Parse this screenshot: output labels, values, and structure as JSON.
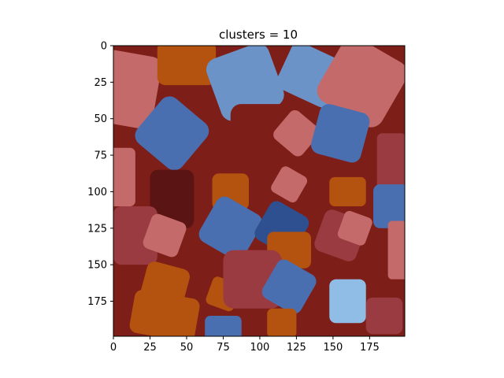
{
  "chart_data": {
    "type": "heatmap",
    "title": "clusters = 10",
    "xlabel": "",
    "ylabel": "",
    "xlim": [
      0,
      199
    ],
    "ylim": [
      199,
      0
    ],
    "x_ticks": [
      0,
      25,
      50,
      75,
      100,
      125,
      150,
      175
    ],
    "y_ticks": [
      0,
      25,
      50,
      75,
      100,
      125,
      150,
      175
    ],
    "grid": false,
    "palette": [
      "#2d0a0c",
      "#5a1414",
      "#7e1e18",
      "#9a3b42",
      "#c46a6a",
      "#b4520f",
      "#2e4f90",
      "#4a6fb0",
      "#6b93c8",
      "#8fbde6"
    ],
    "background_cluster": 2,
    "blobs": [
      {
        "shape": "rect",
        "cx": 10,
        "cy": 30,
        "w": 40,
        "h": 50,
        "rot": 10,
        "c": 4
      },
      {
        "shape": "rect",
        "cx": 50,
        "cy": 12,
        "w": 40,
        "h": 30,
        "rot": 0,
        "c": 5
      },
      {
        "shape": "rect",
        "cx": 90,
        "cy": 25,
        "w": 45,
        "h": 45,
        "rot": -20,
        "c": 8
      },
      {
        "shape": "rect",
        "cx": 135,
        "cy": 20,
        "w": 40,
        "h": 35,
        "rot": 25,
        "c": 8
      },
      {
        "shape": "rect",
        "cx": 170,
        "cy": 25,
        "w": 50,
        "h": 50,
        "rot": 30,
        "c": 4
      },
      {
        "shape": "rect",
        "cx": 40,
        "cy": 60,
        "w": 40,
        "h": 40,
        "rot": 40,
        "c": 7
      },
      {
        "shape": "rect",
        "cx": 100,
        "cy": 60,
        "w": 40,
        "h": 40,
        "rot": 0,
        "c": 2
      },
      {
        "shape": "rect",
        "cx": 125,
        "cy": 60,
        "w": 25,
        "h": 25,
        "rot": 40,
        "c": 4
      },
      {
        "shape": "rect",
        "cx": 155,
        "cy": 60,
        "w": 35,
        "h": 35,
        "rot": 15,
        "c": 7
      },
      {
        "shape": "rect",
        "cx": 190,
        "cy": 80,
        "w": 20,
        "h": 40,
        "rot": 0,
        "c": 3
      },
      {
        "shape": "rect",
        "cx": 5,
        "cy": 90,
        "w": 20,
        "h": 40,
        "rot": 0,
        "c": 4
      },
      {
        "shape": "rect",
        "cx": 40,
        "cy": 105,
        "w": 30,
        "h": 40,
        "rot": 0,
        "c": 1
      },
      {
        "shape": "rect",
        "cx": 80,
        "cy": 100,
        "w": 25,
        "h": 25,
        "rot": 0,
        "c": 5
      },
      {
        "shape": "rect",
        "cx": 120,
        "cy": 95,
        "w": 20,
        "h": 20,
        "rot": 30,
        "c": 4
      },
      {
        "shape": "rect",
        "cx": 160,
        "cy": 100,
        "w": 25,
        "h": 20,
        "rot": 0,
        "c": 5
      },
      {
        "shape": "rect",
        "cx": 190,
        "cy": 110,
        "w": 25,
        "h": 30,
        "rot": 0,
        "c": 7
      },
      {
        "shape": "rect",
        "cx": 15,
        "cy": 130,
        "w": 30,
        "h": 40,
        "rot": 0,
        "c": 3
      },
      {
        "shape": "rect",
        "cx": 35,
        "cy": 130,
        "w": 25,
        "h": 25,
        "rot": 20,
        "c": 4
      },
      {
        "shape": "rect",
        "cx": 80,
        "cy": 125,
        "w": 35,
        "h": 35,
        "rot": 30,
        "c": 7
      },
      {
        "shape": "rect",
        "cx": 115,
        "cy": 125,
        "w": 30,
        "h": 30,
        "rot": 30,
        "c": 6
      },
      {
        "shape": "rect",
        "cx": 120,
        "cy": 140,
        "w": 30,
        "h": 25,
        "rot": 0,
        "c": 5
      },
      {
        "shape": "rect",
        "cx": 155,
        "cy": 130,
        "w": 30,
        "h": 30,
        "rot": 20,
        "c": 3
      },
      {
        "shape": "rect",
        "cx": 165,
        "cy": 125,
        "w": 20,
        "h": 20,
        "rot": 20,
        "c": 4
      },
      {
        "shape": "rect",
        "cx": 195,
        "cy": 140,
        "w": 15,
        "h": 40,
        "rot": 0,
        "c": 4
      },
      {
        "shape": "rect",
        "cx": 35,
        "cy": 165,
        "w": 30,
        "h": 30,
        "rot": 15,
        "c": 5
      },
      {
        "shape": "rect",
        "cx": 35,
        "cy": 185,
        "w": 45,
        "h": 30,
        "rot": 10,
        "c": 5
      },
      {
        "shape": "rect",
        "cx": 75,
        "cy": 170,
        "w": 20,
        "h": 20,
        "rot": 20,
        "c": 5
      },
      {
        "shape": "rect",
        "cx": 95,
        "cy": 160,
        "w": 40,
        "h": 40,
        "rot": 0,
        "c": 3
      },
      {
        "shape": "rect",
        "cx": 120,
        "cy": 165,
        "w": 30,
        "h": 30,
        "rot": 30,
        "c": 7
      },
      {
        "shape": "rect",
        "cx": 160,
        "cy": 175,
        "w": 25,
        "h": 30,
        "rot": 0,
        "c": 9
      },
      {
        "shape": "rect",
        "cx": 115,
        "cy": 190,
        "w": 20,
        "h": 20,
        "rot": 0,
        "c": 5
      },
      {
        "shape": "rect",
        "cx": 185,
        "cy": 185,
        "w": 25,
        "h": 25,
        "rot": 0,
        "c": 3
      },
      {
        "shape": "rect",
        "cx": 75,
        "cy": 195,
        "w": 25,
        "h": 20,
        "rot": 0,
        "c": 7
      }
    ]
  }
}
